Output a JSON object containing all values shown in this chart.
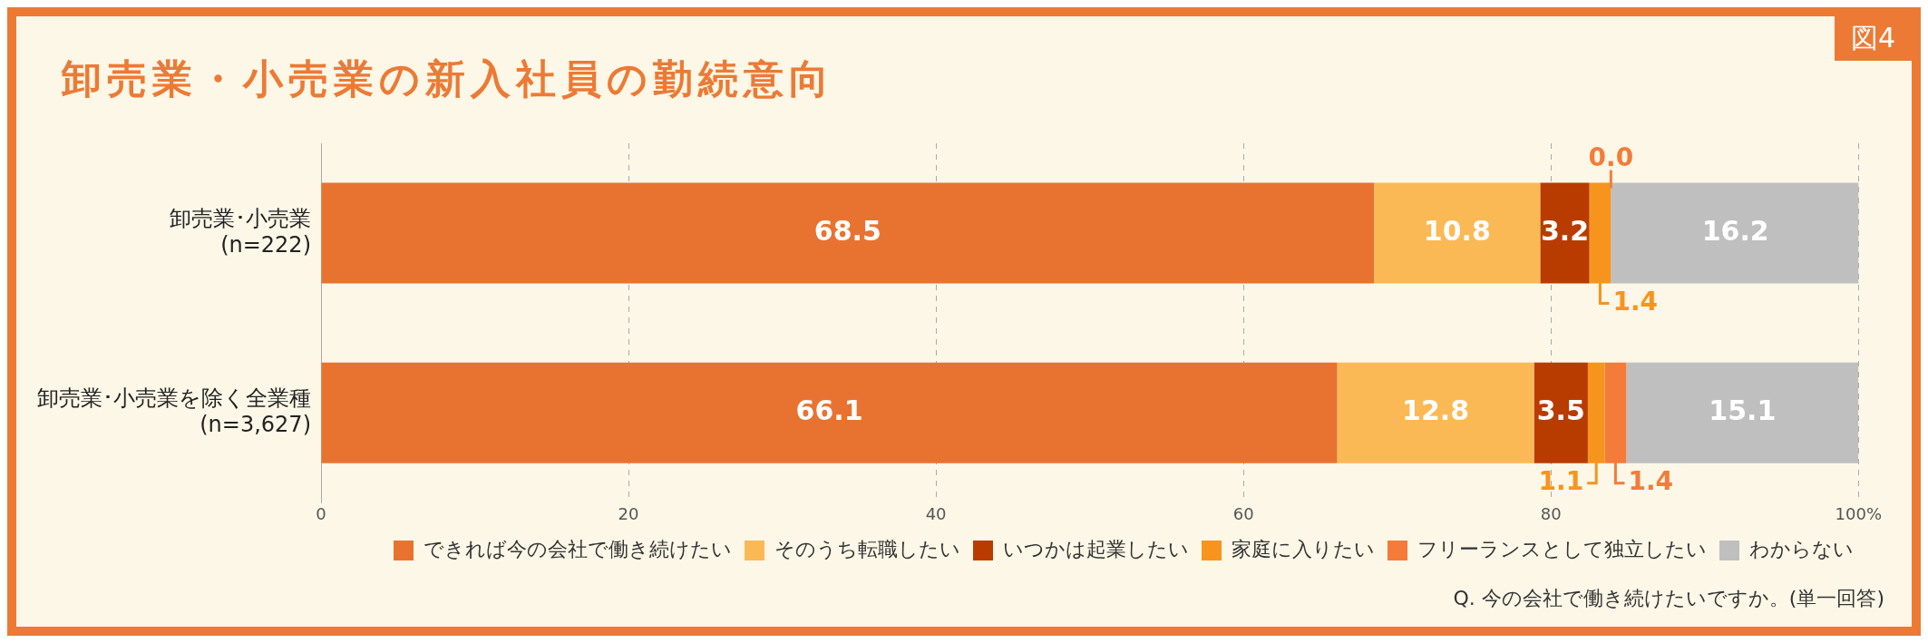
{
  "chart_data": {
    "type": "bar",
    "orientation": "horizontal",
    "stacked": true,
    "title": "卸売業・小売業の新入社員の勤続意向",
    "categories": [
      "卸売業･小売業\n(n=222)",
      "卸売業･小売業を除く全業種\n(n=3,627)"
    ],
    "series": [
      {
        "name": "できれば今の会社で働き続けたい",
        "color": "#e87331",
        "values": [
          68.5,
          66.1
        ],
        "value_labels": [
          "68.5",
          "66.1"
        ]
      },
      {
        "name": "そのうち転職したい",
        "color": "#fbb955",
        "values": [
          10.8,
          12.8
        ],
        "value_labels": [
          "10.8",
          "12.8"
        ]
      },
      {
        "name": "いつかは起業したい",
        "color": "#b83c00",
        "values": [
          3.2,
          3.5
        ],
        "value_labels": [
          "3.2",
          "3.5"
        ]
      },
      {
        "name": "家庭に入りたい",
        "color": "#f7941d",
        "values": [
          1.4,
          1.1
        ],
        "value_labels": [
          "1.4",
          "1.1"
        ]
      },
      {
        "name": "フリーランスとして独立したい",
        "color": "#f47b3a",
        "values": [
          0.0,
          1.4
        ],
        "value_labels": [
          "0.0",
          "1.4"
        ]
      },
      {
        "name": "わからない",
        "color": "#bfbfbf",
        "values": [
          16.2,
          15.1
        ],
        "value_labels": [
          "16.2",
          "15.1"
        ]
      }
    ],
    "xlim": [
      0,
      100
    ],
    "xticks": [
      0,
      20,
      40,
      60,
      80,
      {
        "value": 100,
        "label": "100%"
      }
    ],
    "grid": "x",
    "legend": "bottom right",
    "annotations": [
      "図4",
      "Q. 今の会社で働き続けたいですか。(単一回答)"
    ]
  }
}
